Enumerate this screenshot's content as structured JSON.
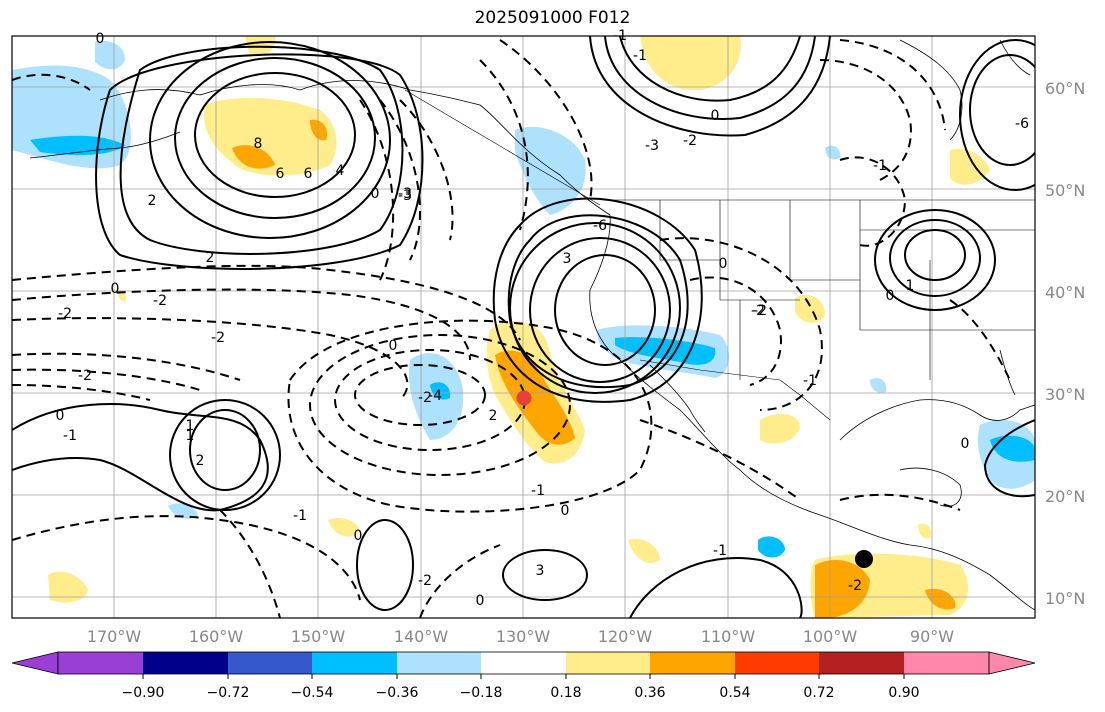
{
  "title": "2025091000 F012",
  "map": {
    "projection": "PlateCarree",
    "lon_range": [
      -180,
      -80
    ],
    "lat_range": [
      7,
      64
    ],
    "lat_ticks": [
      "10°N",
      "20°N",
      "30°N",
      "40°N",
      "50°N",
      "60°N"
    ],
    "lon_ticks": [
      "170°W",
      "160°W",
      "150°W",
      "140°W",
      "130°W",
      "120°W",
      "110°W",
      "100°W",
      "90°W"
    ],
    "contour_labels": [
      "2",
      "8",
      "6",
      "4",
      "2",
      "0",
      "-3",
      "-2",
      "-2",
      "-2",
      "0",
      "-2",
      "2",
      "3",
      "-6",
      "-3",
      "0",
      "-2",
      "-1",
      "-1",
      "0",
      "1",
      "2",
      "0",
      "-1",
      "0",
      "-1",
      "0",
      "1",
      "-1",
      "0",
      "-1",
      "0",
      "6",
      "-1",
      "0",
      "-2",
      "-3",
      "-2",
      "-4",
      "0",
      "-1",
      "0",
      "-2",
      "3",
      "1",
      "-2",
      "-2",
      "-6"
    ],
    "markers": [
      {
        "name": "red-dot",
        "lon": -130,
        "lat": 29.5,
        "color": "#e8403a"
      },
      {
        "name": "black-dot",
        "lon": -96.5,
        "lat": 13.6,
        "color": "#000000"
      }
    ]
  },
  "colorbar": {
    "levels": [
      "−0.90",
      "−0.72",
      "−0.54",
      "−0.36",
      "−0.18",
      "0.18",
      "0.36",
      "0.54",
      "0.72",
      "0.90"
    ],
    "colors": [
      "#9a3fd6",
      "#00008b",
      "#3558cc",
      "#00bfff",
      "#aee1fb",
      "#ffffff",
      "#ffec8b",
      "#ffa500",
      "#ff3c00",
      "#b22222",
      "#ff88aa"
    ]
  }
}
